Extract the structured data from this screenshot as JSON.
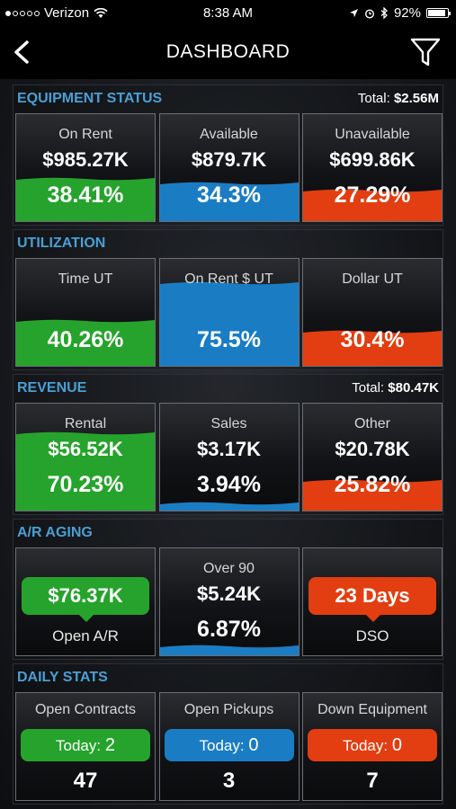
{
  "status_bar": {
    "carrier": "Verizon",
    "time": "8:38 AM",
    "battery": "92%",
    "battery_level": 0.92
  },
  "nav": {
    "title": "DASHBOARD",
    "back_icon": "chevron-left-icon",
    "filter_icon": "filter-icon"
  },
  "colors": {
    "green": "#26a32c",
    "blue": "#1a7dc4",
    "red": "#e23e11",
    "section_title": "#4a9fd4"
  },
  "equipment_status": {
    "title": "EQUIPMENT STATUS",
    "total_label": "Total:",
    "total_value": "$2.56M",
    "tiles": [
      {
        "label": "On Rent",
        "value": "$985.27K",
        "percent": "38.41%",
        "fill_fraction": 0.38,
        "color": "green"
      },
      {
        "label": "Available",
        "value": "$879.7K",
        "percent": "34.3%",
        "fill_fraction": 0.34,
        "color": "blue"
      },
      {
        "label": "Unavailable",
        "value": "$699.86K",
        "percent": "27.29%",
        "fill_fraction": 0.27,
        "color": "red"
      }
    ]
  },
  "utilization": {
    "title": "UTILIZATION",
    "tiles": [
      {
        "label": "Time UT",
        "percent": "40.26%",
        "fill_fraction": 0.4026,
        "color": "green"
      },
      {
        "label": "On Rent $ UT",
        "percent": "75.5%",
        "fill_fraction": 0.755,
        "color": "blue"
      },
      {
        "label": "Dollar UT",
        "percent": "30.4%",
        "fill_fraction": 0.304,
        "color": "red"
      }
    ]
  },
  "revenue": {
    "title": "REVENUE",
    "total_label": "Total:",
    "total_value": "$80.47K",
    "tiles": [
      {
        "label": "Rental",
        "value": "$56.52K",
        "percent": "70.23%",
        "fill_fraction": 0.7023,
        "color": "green"
      },
      {
        "label": "Sales",
        "value": "$3.17K",
        "percent": "3.94%",
        "fill_fraction": 0.0394,
        "color": "blue"
      },
      {
        "label": "Other",
        "value": "$20.78K",
        "percent": "25.82%",
        "fill_fraction": 0.2582,
        "color": "red"
      }
    ]
  },
  "ar_aging": {
    "title": "A/R AGING",
    "open_ar": {
      "value": "$76.37K",
      "label": "Open A/R",
      "color": "green"
    },
    "over_90": {
      "label": "Over 90",
      "value": "$5.24K",
      "percent": "6.87%",
      "fill_fraction": 0.0687,
      "color": "blue"
    },
    "dso": {
      "value": "23 Days",
      "label": "DSO",
      "color": "red"
    }
  },
  "daily_stats": {
    "title": "DAILY STATS",
    "tiles": [
      {
        "label": "Open Contracts",
        "today_label": "Today:",
        "today_value": "2",
        "total": "47",
        "color": "green"
      },
      {
        "label": "Open Pickups",
        "today_label": "Today:",
        "today_value": "0",
        "total": "3",
        "color": "blue"
      },
      {
        "label": "Down Equipment",
        "today_label": "Today:",
        "today_value": "0",
        "total": "7",
        "color": "red"
      }
    ]
  }
}
